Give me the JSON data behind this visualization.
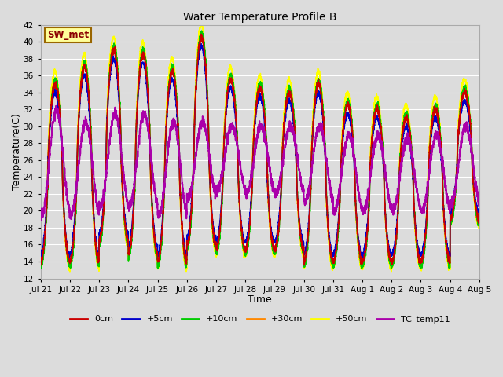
{
  "title": "Water Temperature Profile B",
  "xlabel": "Time",
  "ylabel": "Temperature(C)",
  "ylim": [
    12,
    42
  ],
  "yticks": [
    12,
    14,
    16,
    18,
    20,
    22,
    24,
    26,
    28,
    30,
    32,
    34,
    36,
    38,
    40,
    42
  ],
  "background_color": "#dcdcdc",
  "plot_bg_color": "#dcdcdc",
  "grid_color": "#ffffff",
  "series": {
    "0cm": {
      "color": "#cc0000",
      "lw": 1.2,
      "zorder": 3
    },
    "+5cm": {
      "color": "#0000cc",
      "lw": 1.2,
      "zorder": 3
    },
    "+10cm": {
      "color": "#00cc00",
      "lw": 1.2,
      "zorder": 3
    },
    "+30cm": {
      "color": "#ff8800",
      "lw": 1.2,
      "zorder": 3
    },
    "+50cm": {
      "color": "#ffff00",
      "lw": 1.2,
      "zorder": 2
    },
    "TC_temp11": {
      "color": "#aa00aa",
      "lw": 1.4,
      "zorder": 4
    }
  },
  "legend_label": "SW_met",
  "legend_box_color": "#ffff99",
  "legend_border_color": "#996600",
  "day_labels": [
    "Jul 21",
    "Jul 22",
    "Jul 23",
    "Jul 24",
    "Jul 25",
    "Jul 26",
    "Jul 27",
    "Jul 28",
    "Jul 29",
    "Jul 30",
    "Jul 31",
    "Aug 1",
    "Aug 2",
    "Aug 3",
    "Aug 4",
    "Aug 5"
  ],
  "peaks_sharp": [
    35,
    37,
    39,
    38.5,
    36.5,
    40.5,
    35.5,
    34.5,
    34,
    35,
    32.5,
    32,
    31,
    32,
    34
  ],
  "troughs_sharp": [
    14.0,
    14.0,
    16.5,
    15.0,
    14.0,
    16.0,
    15.5,
    15.5,
    15.5,
    14.0,
    14.0,
    14.0,
    14.0,
    14.0,
    19.0
  ],
  "peaks_tc": [
    32,
    30.5,
    31.5,
    31.5,
    30.5,
    30.5,
    30,
    30,
    30,
    30,
    29,
    29,
    28.5,
    29,
    30
  ],
  "troughs_tc": [
    19.5,
    19.5,
    20.5,
    20.5,
    19.5,
    21.5,
    22.5,
    22,
    22,
    21,
    20,
    20,
    20,
    20,
    21
  ]
}
